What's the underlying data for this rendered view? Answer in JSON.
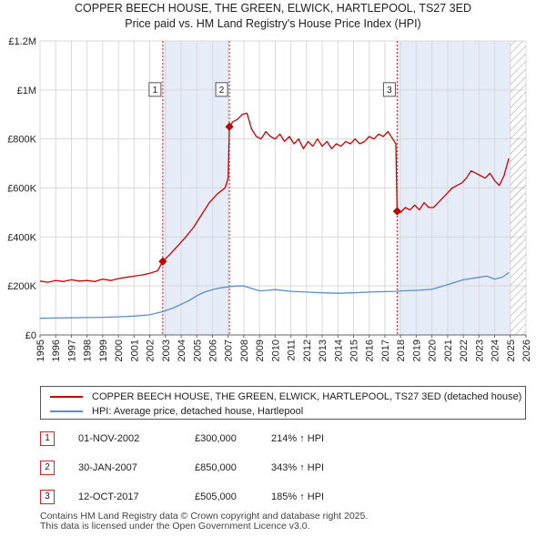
{
  "title_line1": "COPPER BEECH HOUSE, THE GREEN, ELWICK, HARTLEPOOL, TS27 3ED",
  "title_line2": "Price paid vs. HM Land Registry's House Price Index (HPI)",
  "colors": {
    "property": "#cc0000",
    "hpi": "#5b8fcc",
    "shade": "#e6ecf8",
    "grid": "#d9d9d9",
    "event_line": "#d22222"
  },
  "legend": {
    "property_label": "COPPER BEECH HOUSE, THE GREEN, ELWICK, HARTLEPOOL, TS27 3ED (detached house)",
    "hpi_label": "HPI: Average price, detached house, Hartlepool"
  },
  "events": [
    {
      "num": "1",
      "date": "01-NOV-2002",
      "price": "£300,000",
      "hpi": "214% ↑ HPI"
    },
    {
      "num": "2",
      "date": "30-JAN-2007",
      "price": "£850,000",
      "hpi": "343% ↑ HPI"
    },
    {
      "num": "3",
      "date": "12-OCT-2017",
      "price": "£505,000",
      "hpi": "185% ↑ HPI"
    }
  ],
  "footer_line1": "Contains HM Land Registry data © Crown copyright and database right 2025.",
  "footer_line2": "This data is licensed under the Open Government Licence v3.0.",
  "chart_data": {
    "type": "line",
    "title": "COPPER BEECH HOUSE, THE GREEN, ELWICK, HARTLEPOOL, TS27 3ED",
    "subtitle": "Price paid vs. HM Land Registry's House Price Index (HPI)",
    "xlabel": "",
    "ylabel": "",
    "xlim": [
      1995.0,
      2026.0
    ],
    "ylim": [
      0,
      1200000
    ],
    "x_ticks": [
      "1995",
      "1996",
      "1997",
      "1998",
      "1999",
      "2000",
      "2001",
      "2002",
      "2003",
      "2004",
      "2005",
      "2006",
      "2007",
      "2008",
      "2009",
      "2010",
      "2011",
      "2012",
      "2013",
      "2014",
      "2015",
      "2016",
      "2017",
      "2018",
      "2019",
      "2020",
      "2021",
      "2022",
      "2023",
      "2024",
      "2025",
      "2026"
    ],
    "y_ticks": [
      {
        "value": 0,
        "label": "£0"
      },
      {
        "value": 200000,
        "label": "£200K"
      },
      {
        "value": 400000,
        "label": "£400K"
      },
      {
        "value": 600000,
        "label": "£600K"
      },
      {
        "value": 800000,
        "label": "£800K"
      },
      {
        "value": 1000000,
        "label": "£1M"
      },
      {
        "value": 1200000,
        "label": "£1.2M"
      }
    ],
    "grid": true,
    "shaded_ranges": [
      [
        2002.83,
        2007.08
      ],
      [
        2017.78,
        2025.0
      ]
    ],
    "hatched_from": 2025.0,
    "markers": [
      {
        "label": "1",
        "x": 2002.83,
        "y": 300000
      },
      {
        "label": "2",
        "x": 2007.08,
        "y": 850000
      },
      {
        "label": "3",
        "x": 2017.78,
        "y": 505000
      }
    ],
    "series": [
      {
        "name": "COPPER BEECH HOUSE, THE GREEN, ELWICK, HARTLEPOOL, TS27 3ED (detached house)",
        "x": [
          1995.0,
          1995.5,
          1996.0,
          1996.5,
          1997.0,
          1997.5,
          1998.0,
          1998.5,
          1999.0,
          1999.5,
          2000.0,
          2000.5,
          2001.0,
          2001.5,
          2002.0,
          2002.5,
          2002.83,
          2003.3,
          2003.8,
          2004.3,
          2004.8,
          2005.3,
          2005.8,
          2006.3,
          2006.8,
          2007.0,
          2007.08,
          2007.3,
          2007.6,
          2007.9,
          2008.2,
          2008.5,
          2008.8,
          2009.1,
          2009.4,
          2009.7,
          2010.0,
          2010.3,
          2010.6,
          2010.9,
          2011.2,
          2011.5,
          2011.8,
          2012.1,
          2012.4,
          2012.7,
          2013.0,
          2013.3,
          2013.6,
          2013.9,
          2014.2,
          2014.5,
          2014.8,
          2015.1,
          2015.4,
          2015.7,
          2016.0,
          2016.3,
          2016.6,
          2016.9,
          2017.2,
          2017.5,
          2017.7,
          2017.78,
          2018.0,
          2018.3,
          2018.6,
          2018.9,
          2019.2,
          2019.5,
          2019.8,
          2020.1,
          2020.4,
          2020.7,
          2021.0,
          2021.3,
          2021.6,
          2021.9,
          2022.2,
          2022.5,
          2022.8,
          2023.1,
          2023.4,
          2023.7,
          2024.0,
          2024.3,
          2024.6,
          2024.9
        ],
        "values": [
          220000,
          215000,
          222000,
          218000,
          225000,
          220000,
          222000,
          218000,
          228000,
          222000,
          230000,
          235000,
          240000,
          245000,
          252000,
          262000,
          300000,
          330000,
          365000,
          400000,
          440000,
          490000,
          540000,
          575000,
          600000,
          640000,
          850000,
          870000,
          880000,
          900000,
          905000,
          840000,
          810000,
          800000,
          830000,
          810000,
          800000,
          820000,
          790000,
          810000,
          780000,
          800000,
          760000,
          790000,
          770000,
          800000,
          770000,
          790000,
          760000,
          780000,
          770000,
          790000,
          780000,
          800000,
          780000,
          790000,
          810000,
          800000,
          820000,
          810000,
          830000,
          800000,
          780000,
          505000,
          500000,
          520000,
          510000,
          530000,
          510000,
          540000,
          520000,
          520000,
          540000,
          560000,
          580000,
          600000,
          610000,
          620000,
          640000,
          670000,
          660000,
          650000,
          640000,
          660000,
          630000,
          610000,
          650000,
          720000
        ]
      },
      {
        "name": "HPI: Average price, detached house, Hartlepool",
        "x": [
          1995.0,
          1996.0,
          1997.0,
          1998.0,
          1999.0,
          2000.0,
          2001.0,
          2002.0,
          2002.83,
          2003.5,
          2004.0,
          2004.5,
          2005.0,
          2005.5,
          2006.0,
          2006.5,
          2007.0,
          2007.5,
          2008.0,
          2008.5,
          2009.0,
          2009.5,
          2010.0,
          2011.0,
          2012.0,
          2013.0,
          2014.0,
          2015.0,
          2016.0,
          2017.0,
          2017.78,
          2018.0,
          2019.0,
          2020.0,
          2021.0,
          2022.0,
          2023.0,
          2023.5,
          2024.0,
          2024.5,
          2024.9
        ],
        "values": [
          68000,
          69000,
          70000,
          71000,
          72000,
          74000,
          77000,
          82000,
          95000,
          110000,
          125000,
          140000,
          160000,
          175000,
          185000,
          192000,
          196000,
          200000,
          200000,
          190000,
          180000,
          182000,
          185000,
          178000,
          175000,
          172000,
          170000,
          172000,
          175000,
          177000,
          178000,
          180000,
          182000,
          186000,
          205000,
          225000,
          235000,
          240000,
          228000,
          236000,
          255000
        ]
      }
    ]
  }
}
